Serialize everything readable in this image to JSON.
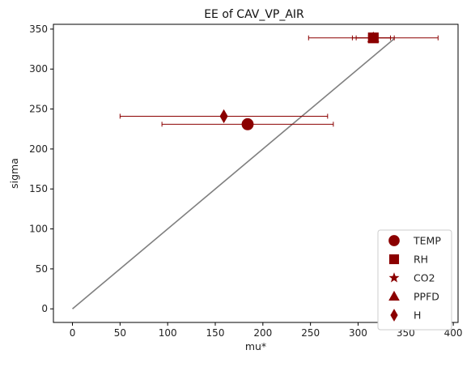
{
  "chart_data": {
    "type": "scatter",
    "title": "EE of CAV_VP_AIR",
    "xlabel": "mu*",
    "ylabel": "sigma",
    "xlim": [
      -20,
      405
    ],
    "ylim": [
      -17,
      356
    ],
    "xticks": [
      0,
      50,
      100,
      150,
      200,
      250,
      300,
      350,
      400
    ],
    "yticks": [
      0,
      50,
      100,
      150,
      200,
      250,
      300,
      350
    ],
    "grid": false,
    "legend_position": "lower-right",
    "colors": {
      "points": "#8b0000",
      "reference_line": "#808080"
    },
    "reference_line": {
      "x": [
        0,
        338
      ],
      "y": [
        0,
        338
      ]
    },
    "series": [
      {
        "name": "TEMP",
        "marker": "circle",
        "x": 184,
        "y": 231,
        "xerr": 90
      },
      {
        "name": "RH",
        "marker": "square",
        "x": 316,
        "y": 339,
        "xerr": 68
      },
      {
        "name": "CO2",
        "marker": "star",
        "x": 316,
        "y": 339,
        "xerr": 22
      },
      {
        "name": "PPFD",
        "marker": "triangle",
        "x": 316,
        "y": 339,
        "xerr": 18
      },
      {
        "name": "H",
        "marker": "diamond",
        "x": 159,
        "y": 241,
        "xerr": 109
      }
    ]
  }
}
